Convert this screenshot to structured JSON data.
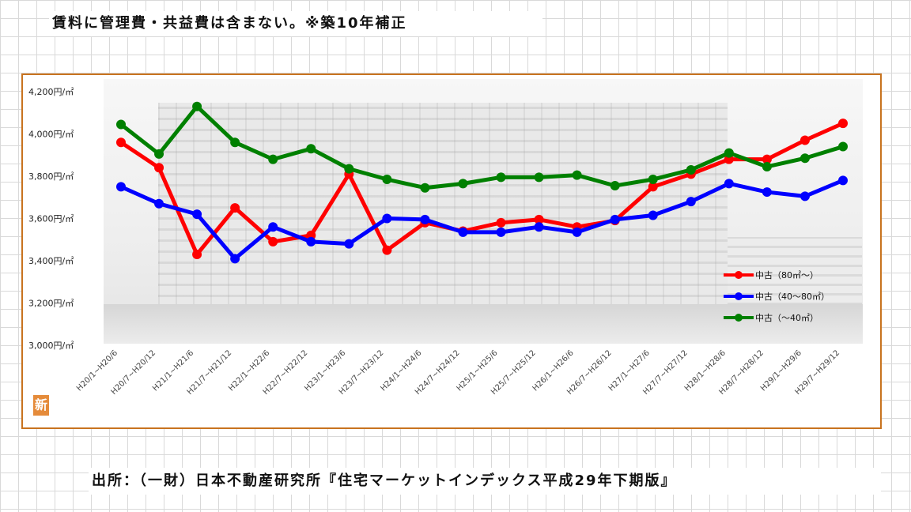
{
  "note": "賃料に管理費・共益費は含まない。※築10年補正",
  "source": "出所：（一財）日本不動産研究所『住宅マーケットインデックス平成29年下期版』",
  "logo_char": "新",
  "colors": {
    "red": "#ff0000",
    "blue": "#0000ff",
    "green": "#008000",
    "frame": "#c8731f"
  },
  "chart_data": {
    "type": "line",
    "y_tick_labels": [
      "3,000円/㎡",
      "3,200円/㎡",
      "3,400円/㎡",
      "3,600円/㎡",
      "3,800円/㎡",
      "4,000円/㎡",
      "4,200円/㎡"
    ],
    "y_ticks": [
      3000,
      3200,
      3400,
      3600,
      3800,
      4000,
      4200
    ],
    "ylim": [
      3000,
      4200
    ],
    "categories": [
      "H20/1~H20/6",
      "H20/7~H20/12",
      "H21/1~H21/6",
      "H21/7~H21/12",
      "H22/1~H22/6",
      "H22/7~H22/12",
      "H23/1~H23/6",
      "H23/7~H23/12",
      "H24/1~H24/6",
      "H24/7~H24/12",
      "H25/1~H25/6",
      "H25/7~H25/12",
      "H26/1~H26/6",
      "H26/7~H26/12",
      "H27/1~H27/6",
      "H27/7~H27/12",
      "H28/1~H28/6",
      "H28/7~H28/12",
      "H29/1~H29/6",
      "H29/7~H29/12"
    ],
    "series": [
      {
        "name": "中古（80㎡～）",
        "color": "#ff0000",
        "values": [
          3960,
          3840,
          3430,
          3650,
          3490,
          3520,
          3810,
          3450,
          3580,
          3540,
          3580,
          3595,
          3560,
          3590,
          3750,
          3810,
          3880,
          3880,
          3970,
          4050
        ]
      },
      {
        "name": "中古（40～80㎡）",
        "color": "#0000ff",
        "values": [
          3750,
          3670,
          3620,
          3410,
          3560,
          3490,
          3480,
          3600,
          3595,
          3535,
          3535,
          3560,
          3535,
          3595,
          3615,
          3680,
          3765,
          3725,
          3705,
          3780
        ]
      },
      {
        "name": "中古（～40㎡）",
        "color": "#008000",
        "values": [
          4045,
          3905,
          4130,
          3960,
          3880,
          3930,
          3835,
          3785,
          3745,
          3765,
          3795,
          3795,
          3805,
          3755,
          3785,
          3830,
          3910,
          3845,
          3885,
          3940
        ]
      }
    ],
    "legend_position": "bottom-right",
    "grid": false
  }
}
